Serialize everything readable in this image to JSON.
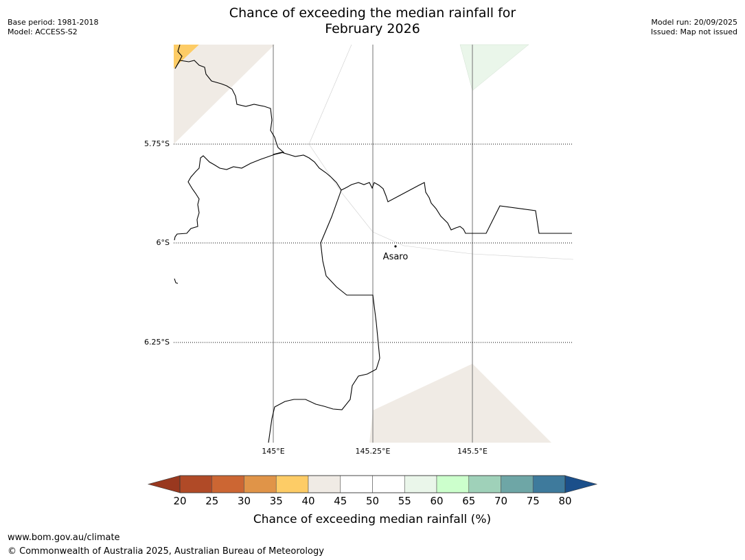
{
  "header": {
    "title_line1": "Chance of exceeding the median rainfall for",
    "title_line2": "February 2026",
    "base_period": "Base period: 1981-2018",
    "model": "Model: ACCESS-S2",
    "model_run": "Model run: 20/09/2025",
    "issued": "Issued: Map not issued"
  },
  "map": {
    "lat_labels": [
      "5.75°S",
      "6°S",
      "6.25°S"
    ],
    "lon_labels": [
      "145°E",
      "145.25°E",
      "145.5°E"
    ],
    "place": "Asaro"
  },
  "legend": {
    "title": "Chance of exceeding median rainfall (%)",
    "ticks": [
      "20",
      "25",
      "30",
      "35",
      "40",
      "45",
      "50",
      "55",
      "60",
      "65",
      "70",
      "75",
      "80"
    ],
    "colors": [
      "#b04a27",
      "#cc6633",
      "#e09448",
      "#fdcc66",
      "#f0ebe5",
      "#ffffff",
      "#ffffff",
      "#eaf6ea",
      "#ccffcc",
      "#9fd1b9",
      "#6ea6a6",
      "#3e7a9c"
    ],
    "under_color": "#99381f",
    "over_color": "#1b4f8a"
  },
  "footer": {
    "url": "www.bom.gov.au/climate",
    "copyright": "© Commonwealth of Australia 2025, Australian Bureau of Meteorology"
  }
}
